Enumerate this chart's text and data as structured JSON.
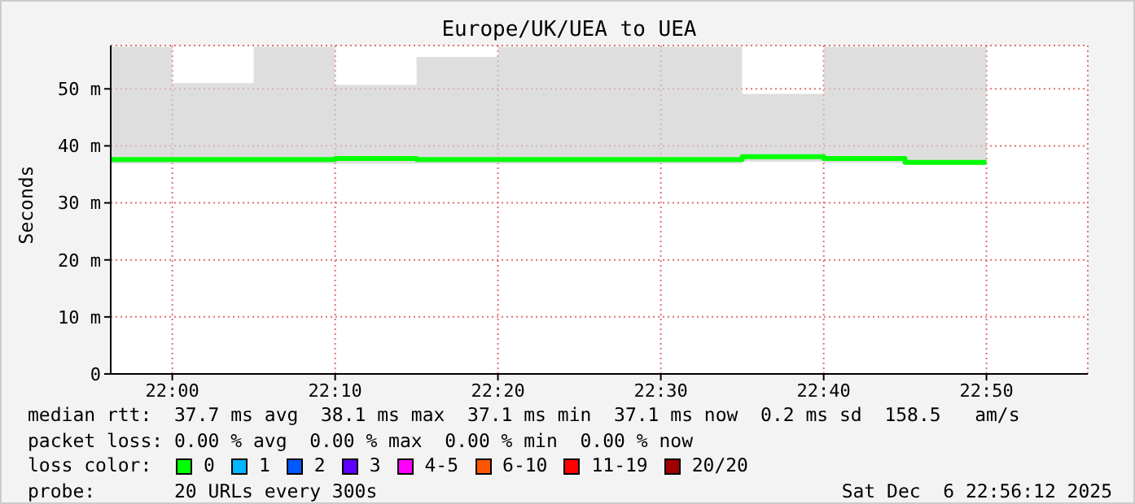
{
  "chart_data": {
    "type": "step",
    "title": "Europe/UK/UEA to UEA",
    "ylabel": "Seconds",
    "x": [
      21.937,
      22,
      22.0833,
      22.1667,
      22.25,
      22.3333,
      22.4167,
      22.5,
      22.5833,
      22.6667,
      22.75,
      22.8333
    ],
    "series": [
      {
        "color": "#00ff00",
        "values": [
          37.6,
          37.6,
          37.6,
          37.8,
          37.6,
          37.6,
          37.6,
          37.6,
          38.1,
          37.8,
          37.1,
          37.1
        ],
        "lower": [
          36.9,
          36.9,
          36.9,
          36.9,
          36.9,
          36.9,
          36.9,
          36.9,
          37.2,
          37.0,
          36.9,
          36.9
        ],
        "upper": [
          57.4,
          51.0,
          57.4,
          50.7,
          55.6,
          57.4,
          57.4,
          57.4,
          49.1,
          57.4,
          57.4,
          57.4
        ]
      }
    ],
    "xlim": [
      21.937,
      22.937
    ],
    "xticks": [
      {
        "value": 22,
        "label": "22:00"
      },
      {
        "value": 22.1667,
        "label": "22:10"
      },
      {
        "value": 22.3333,
        "label": "22:20"
      },
      {
        "value": 22.5,
        "label": "22:30"
      },
      {
        "value": 22.6667,
        "label": "22:40"
      },
      {
        "value": 22.8333,
        "label": "22:50"
      }
    ],
    "ylim": [
      0,
      57.6
    ],
    "yticks": [
      0,
      {
        "value": 10,
        "label": "10 m"
      },
      {
        "value": 20,
        "label": "20 m"
      },
      {
        "value": 30,
        "label": "30 m"
      },
      {
        "value": 40,
        "label": "40 m"
      },
      {
        "value": 50,
        "label": "50 m"
      }
    ],
    "grid": true,
    "legend": false,
    "annotations": [
      "median rtt:  37.7 ms avg  38.1 ms max  37.1 ms min  37.1 ms now  0.2 ms sd  158.5   am/s",
      "packet loss: 0.00 % avg  0.00 % max  0.00 % min  0.00 % now",
      "loss color:",
      "0",
      "1",
      "2",
      "3",
      "4-5",
      "6-10",
      "11-19",
      "20/20",
      "probe:       20 URLs every 300s",
      "Sat Dec  6 22:56:12 2025"
    ]
  }
}
